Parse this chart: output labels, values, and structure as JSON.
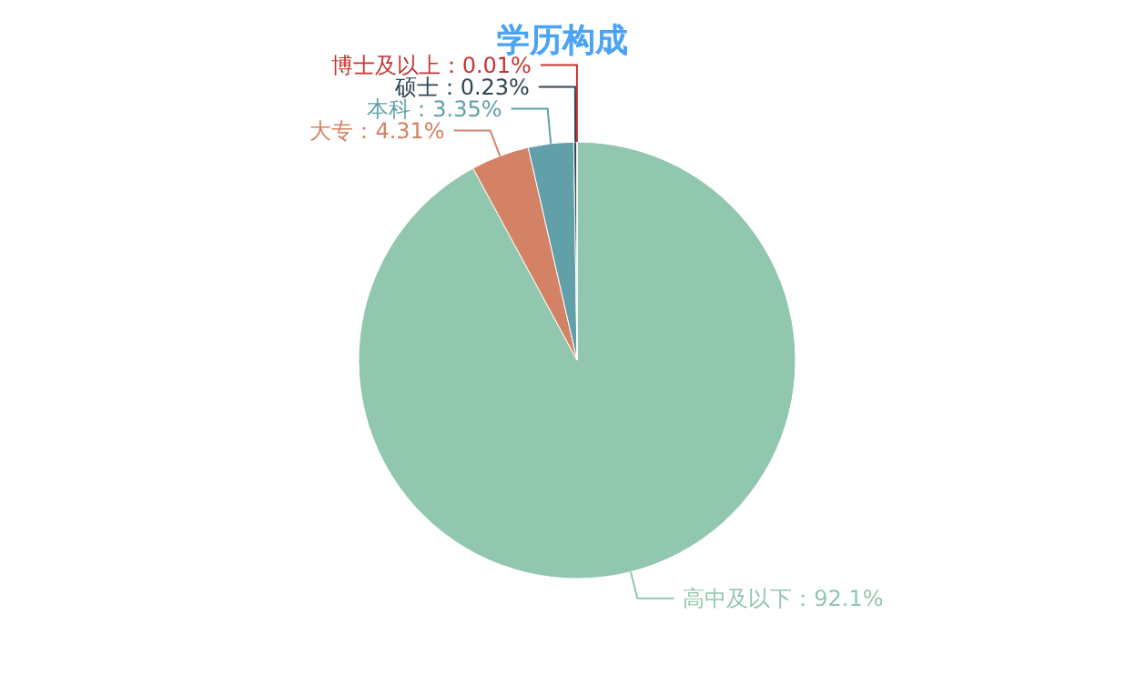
{
  "chart_data": {
    "type": "pie",
    "title": "学历构成",
    "categories": [
      "高中及以下",
      "大专",
      "本科",
      "硕士",
      "博士及以上"
    ],
    "values": [
      92.1,
      4.31,
      3.35,
      0.23,
      0.01
    ],
    "value_labels": [
      "：92.1%",
      "：4.31%",
      "：3.35%",
      "：0.23%",
      "：0.01%"
    ],
    "colors": [
      "#91c7ae",
      "#d48265",
      "#61a0a8",
      "#2f4554",
      "#c23531"
    ]
  }
}
